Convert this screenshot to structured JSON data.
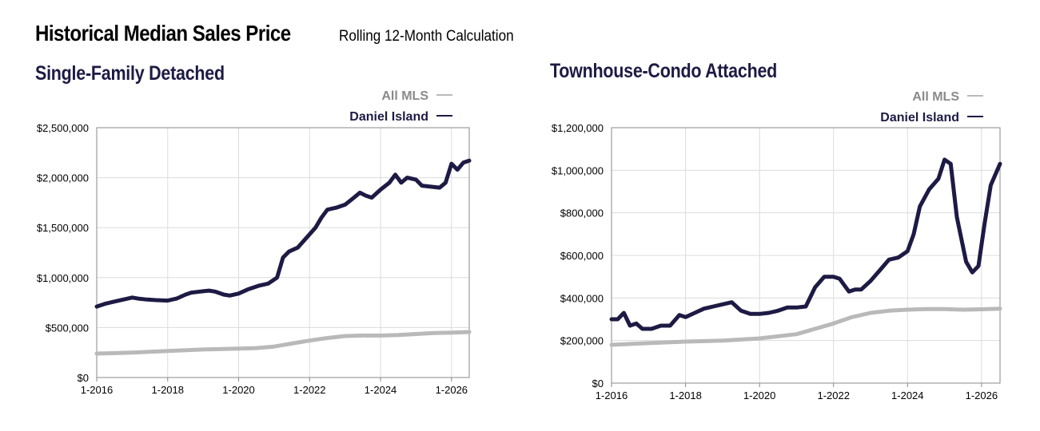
{
  "header": {
    "title": "Historical Median Sales Price",
    "subtitle": "Rolling 12-Month Calculation"
  },
  "colors": {
    "daniel_island": "#1d1b44",
    "all_mls": "#b9b9b9",
    "grid": "#dcdcdc",
    "axis": "#8a8a8a"
  },
  "chart_data": [
    {
      "type": "line",
      "title": "Single-Family Detached",
      "legend_position": "top-right",
      "grid": true,
      "x_ticks": [
        "1-2016",
        "1-2018",
        "1-2020",
        "1-2022",
        "1-2024",
        "1-2026"
      ],
      "xlim": [
        "2016-01",
        "2026-07"
      ],
      "ylim": [
        0,
        2500000
      ],
      "y_ticks": [
        {
          "value": 0,
          "label": "$0"
        },
        {
          "value": 500000,
          "label": "$500,000"
        },
        {
          "value": 1000000,
          "label": "$1,000,000"
        },
        {
          "value": 1500000,
          "label": "$1,500,000"
        },
        {
          "value": 2000000,
          "label": "$2,000,000"
        },
        {
          "value": 2500000,
          "label": "$2,500,000"
        }
      ],
      "series": [
        {
          "name": "All MLS",
          "x": [
            "2016-01",
            "2017-01",
            "2018-01",
            "2019-01",
            "2020-01",
            "2020-07",
            "2021-01",
            "2021-07",
            "2022-01",
            "2022-07",
            "2023-01",
            "2023-07",
            "2024-01",
            "2024-07",
            "2025-01",
            "2025-07",
            "2026-01",
            "2026-07"
          ],
          "values": [
            240000,
            250000,
            265000,
            280000,
            290000,
            295000,
            310000,
            340000,
            370000,
            395000,
            415000,
            420000,
            420000,
            425000,
            435000,
            445000,
            450000,
            455000
          ]
        },
        {
          "name": "Daniel Island",
          "x": [
            "2016-01",
            "2016-04",
            "2016-07",
            "2016-10",
            "2017-01",
            "2017-03",
            "2017-06",
            "2017-09",
            "2018-01",
            "2018-04",
            "2018-07",
            "2018-09",
            "2018-12",
            "2019-03",
            "2019-05",
            "2019-08",
            "2019-10",
            "2020-01",
            "2020-04",
            "2020-06",
            "2020-08",
            "2020-11",
            "2021-02",
            "2021-04",
            "2021-06",
            "2021-09",
            "2021-12",
            "2022-03",
            "2022-05",
            "2022-07",
            "2022-10",
            "2023-01",
            "2023-04",
            "2023-06",
            "2023-08",
            "2023-10",
            "2024-01",
            "2024-04",
            "2024-06",
            "2024-08",
            "2024-10",
            "2025-01",
            "2025-03",
            "2025-06",
            "2025-09",
            "2025-11",
            "2026-01",
            "2026-03",
            "2026-05",
            "2026-07"
          ],
          "values": [
            710000,
            740000,
            760000,
            780000,
            800000,
            790000,
            780000,
            775000,
            770000,
            790000,
            830000,
            850000,
            860000,
            870000,
            860000,
            830000,
            820000,
            840000,
            880000,
            900000,
            920000,
            940000,
            1000000,
            1200000,
            1260000,
            1300000,
            1400000,
            1500000,
            1600000,
            1680000,
            1700000,
            1730000,
            1800000,
            1850000,
            1820000,
            1800000,
            1880000,
            1950000,
            2030000,
            1950000,
            2000000,
            1980000,
            1920000,
            1910000,
            1900000,
            1950000,
            2140000,
            2080000,
            2150000,
            2170000
          ]
        }
      ]
    },
    {
      "type": "line",
      "title": "Townhouse-Condo Attached",
      "legend_position": "top-right",
      "grid": true,
      "x_ticks": [
        "1-2016",
        "1-2018",
        "1-2020",
        "1-2022",
        "1-2024",
        "1-2026"
      ],
      "xlim": [
        "2016-01",
        "2026-07"
      ],
      "ylim": [
        0,
        1200000
      ],
      "y_ticks": [
        {
          "value": 0,
          "label": "$0"
        },
        {
          "value": 200000,
          "label": "$200,000"
        },
        {
          "value": 400000,
          "label": "$400,000"
        },
        {
          "value": 600000,
          "label": "$600,000"
        },
        {
          "value": 800000,
          "label": "$800,000"
        },
        {
          "value": 1000000,
          "label": "$1,000,000"
        },
        {
          "value": 1200000,
          "label": "$1,200,000"
        }
      ],
      "series": [
        {
          "name": "All MLS",
          "x": [
            "2016-01",
            "2017-01",
            "2018-01",
            "2019-01",
            "2020-01",
            "2020-07",
            "2021-01",
            "2021-07",
            "2022-01",
            "2022-07",
            "2023-01",
            "2023-07",
            "2024-01",
            "2024-07",
            "2025-01",
            "2025-07",
            "2026-01",
            "2026-07"
          ],
          "values": [
            180000,
            188000,
            195000,
            200000,
            210000,
            220000,
            230000,
            255000,
            280000,
            310000,
            330000,
            340000,
            345000,
            348000,
            348000,
            345000,
            347000,
            350000
          ]
        },
        {
          "name": "Daniel Island",
          "x": [
            "2016-01",
            "2016-03",
            "2016-05",
            "2016-07",
            "2016-09",
            "2016-11",
            "2017-02",
            "2017-05",
            "2017-08",
            "2017-11",
            "2018-01",
            "2018-04",
            "2018-07",
            "2018-10",
            "2019-01",
            "2019-04",
            "2019-07",
            "2019-10",
            "2020-01",
            "2020-04",
            "2020-07",
            "2020-10",
            "2021-01",
            "2021-04",
            "2021-07",
            "2021-10",
            "2022-01",
            "2022-03",
            "2022-06",
            "2022-08",
            "2022-10",
            "2023-01",
            "2023-04",
            "2023-07",
            "2023-10",
            "2024-01",
            "2024-03",
            "2024-05",
            "2024-08",
            "2024-11",
            "2025-01",
            "2025-03",
            "2025-05",
            "2025-08",
            "2025-10",
            "2025-12",
            "2026-02",
            "2026-04",
            "2026-07"
          ],
          "values": [
            300000,
            300000,
            330000,
            270000,
            280000,
            255000,
            255000,
            270000,
            270000,
            320000,
            310000,
            330000,
            350000,
            360000,
            370000,
            380000,
            340000,
            325000,
            325000,
            330000,
            340000,
            355000,
            355000,
            360000,
            450000,
            500000,
            500000,
            490000,
            430000,
            440000,
            440000,
            480000,
            530000,
            580000,
            590000,
            620000,
            700000,
            830000,
            910000,
            960000,
            1050000,
            1030000,
            780000,
            570000,
            520000,
            550000,
            750000,
            930000,
            1030000
          ]
        }
      ]
    }
  ]
}
